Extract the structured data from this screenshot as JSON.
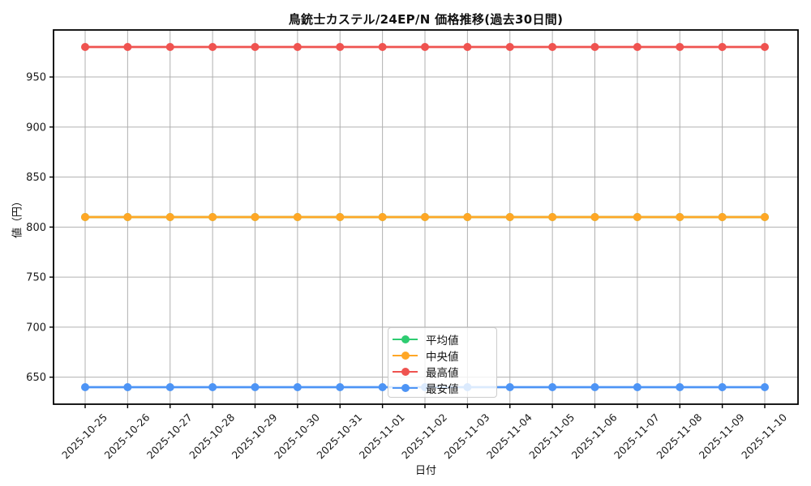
{
  "figure": {
    "background": "#ffffff"
  },
  "chart_data": {
    "type": "line",
    "title": "鳥銃士カステル/24EP/N 価格推移(過去30日間)",
    "xlabel": "日付",
    "ylabel": "値（円）",
    "categories": [
      "2025-10-25",
      "2025-10-26",
      "2025-10-27",
      "2025-10-28",
      "2025-10-29",
      "2025-10-30",
      "2025-10-31",
      "2025-11-01",
      "2025-11-02",
      "2025-11-03",
      "2025-11-04",
      "2025-11-05",
      "2025-11-06",
      "2025-11-07",
      "2025-11-08",
      "2025-11-09",
      "2025-11-10"
    ],
    "series": [
      {
        "name": "平均値",
        "color": "#2ecc71",
        "values": [
          810,
          810,
          810,
          810,
          810,
          810,
          810,
          810,
          810,
          810,
          810,
          810,
          810,
          810,
          810,
          810,
          810
        ]
      },
      {
        "name": "中央値",
        "color": "#ffa726",
        "values": [
          810,
          810,
          810,
          810,
          810,
          810,
          810,
          810,
          810,
          810,
          810,
          810,
          810,
          810,
          810,
          810,
          810
        ]
      },
      {
        "name": "最高値",
        "color": "#ef5350",
        "values": [
          980,
          980,
          980,
          980,
          980,
          980,
          980,
          980,
          980,
          980,
          980,
          980,
          980,
          980,
          980,
          980,
          980
        ]
      },
      {
        "name": "最安値",
        "color": "#4d94f5",
        "values": [
          640,
          640,
          640,
          640,
          640,
          640,
          640,
          640,
          640,
          640,
          640,
          640,
          640,
          640,
          640,
          640,
          640
        ]
      }
    ],
    "yticks": [
      650,
      700,
      750,
      800,
      850,
      900,
      950
    ],
    "ylim": [
      623,
      997
    ],
    "grid": true,
    "legend_position": "inside-lower-center",
    "x_tick_rotation": 45
  },
  "style": {
    "grid_color": "#b0b0b0",
    "spine_color": "#000000",
    "text_color": "#1a1a1a",
    "legend_border_color": "#cccccc",
    "legend_background": "rgba(255,255,255,0.8)"
  }
}
